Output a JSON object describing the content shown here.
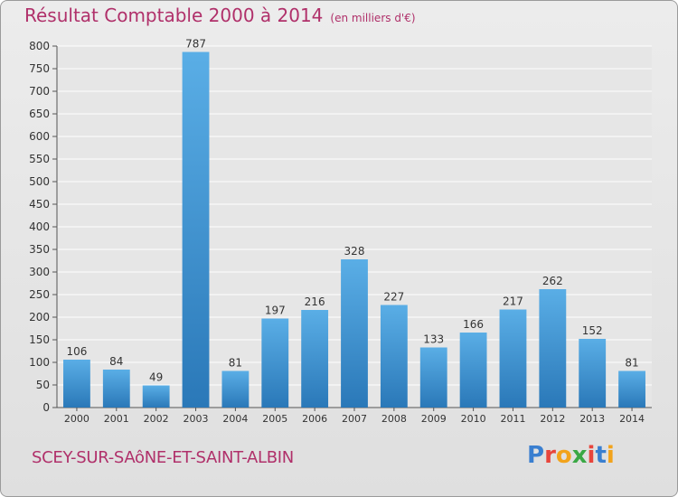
{
  "header": {
    "title": "Résultat Comptable 2000 à 2014",
    "subtitle": "(en milliers d'€)"
  },
  "footer": {
    "commune": "SCEY-SUR-SAôNE-ET-SAINT-ALBIN",
    "logo": [
      "P",
      "r",
      "o",
      "x",
      "i",
      "t",
      "i"
    ]
  },
  "colors": {
    "title": "#b0306a",
    "bar_top": "#5aaee6",
    "bar_bottom": "#2a78b8",
    "logo": [
      "#3a7fd0",
      "#e8453c",
      "#f2a31b",
      "#3aa845",
      "#e8453c",
      "#3a7fd0",
      "#f2a31b"
    ]
  },
  "chart_data": {
    "type": "bar",
    "title": "Résultat Comptable 2000 à 2014",
    "ylabel": "en milliers d'€",
    "categories": [
      "2000",
      "2001",
      "2002",
      "2003",
      "2004",
      "2005",
      "2006",
      "2007",
      "2008",
      "2009",
      "2010",
      "2011",
      "2012",
      "2013",
      "2014"
    ],
    "values": [
      106,
      84,
      49,
      787,
      81,
      197,
      216,
      328,
      227,
      133,
      166,
      217,
      262,
      152,
      81
    ],
    "ylim": [
      0,
      800
    ],
    "yticks": [
      0,
      50,
      100,
      150,
      200,
      250,
      300,
      350,
      400,
      450,
      500,
      550,
      600,
      650,
      700,
      750,
      800
    ],
    "grid": true
  }
}
